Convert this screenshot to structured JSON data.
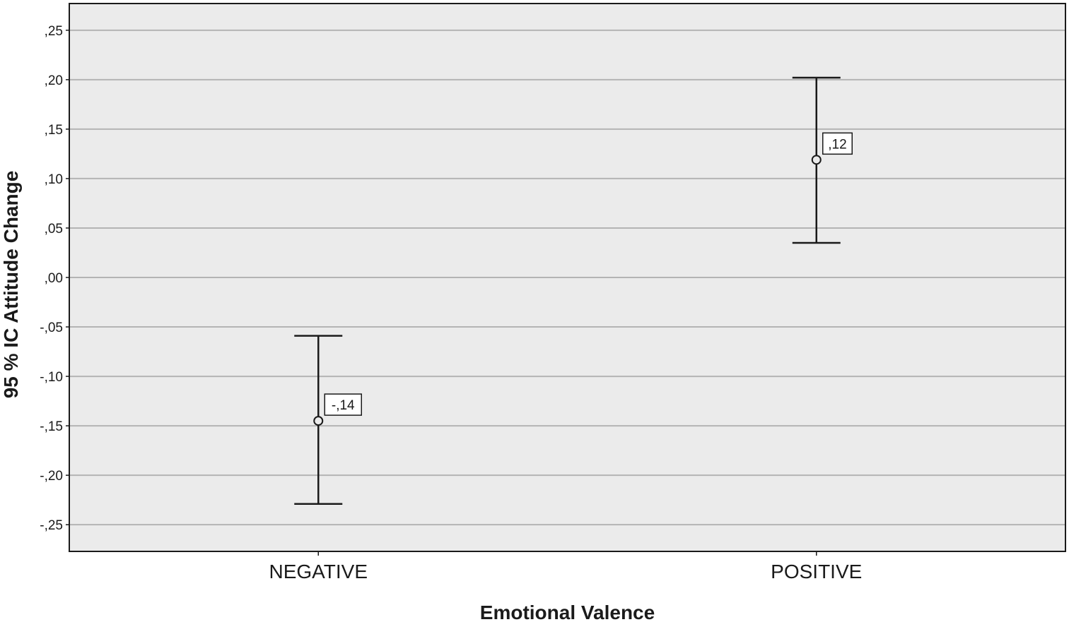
{
  "chart_data": {
    "type": "errorbar",
    "xlabel": "Emotional Valence",
    "ylabel": "95 % IC Attitude Change",
    "categories": [
      "NEGATIVE",
      "POSITIVE"
    ],
    "series": [
      {
        "points": [
          {
            "category": "NEGATIVE",
            "mean": -0.145,
            "lower": -0.229,
            "upper": -0.059,
            "label": "-,14"
          },
          {
            "category": "POSITIVE",
            "mean": 0.119,
            "lower": 0.035,
            "upper": 0.202,
            "label": ",12"
          }
        ]
      }
    ],
    "ylim": [
      -0.277,
      0.277
    ],
    "yticks": [
      -0.25,
      -0.2,
      -0.15,
      -0.1,
      -0.05,
      0.0,
      0.05,
      0.1,
      0.15,
      0.2,
      0.25
    ],
    "ytick_labels": [
      "-,25",
      "-,20",
      "-,15",
      "-,10",
      "-,05",
      ",00",
      ",05",
      ",10",
      ",15",
      ",20",
      ",25"
    ],
    "grid": true,
    "colors": {
      "plot_background": "#ebebeb",
      "gridline": "#b4b4b4",
      "ink": "#1a1a1a"
    }
  }
}
